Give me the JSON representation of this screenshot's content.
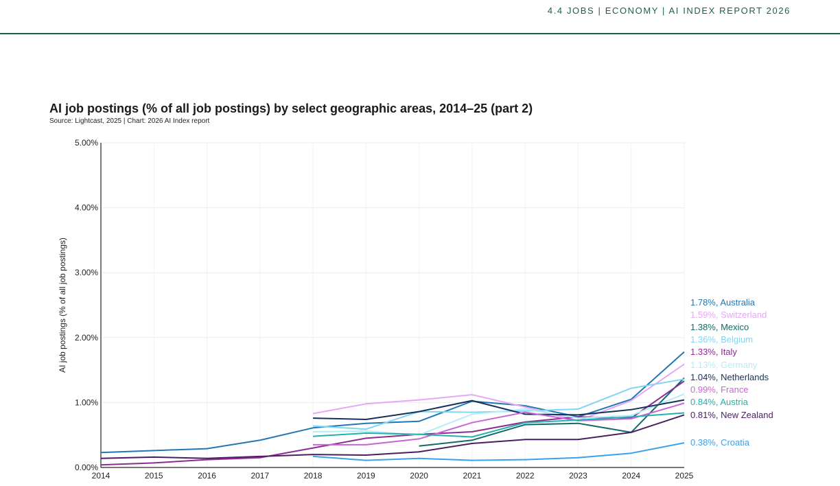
{
  "header": {
    "breadcrumb": "4.4 JOBS  |  ECONOMY  |  AI INDEX REPORT 2026"
  },
  "chart_data": {
    "type": "line",
    "title": "AI job postings (% of all job postings) by select geographic areas, 2014–25 (part 2)",
    "subtitle": "Source: Lightcast, 2025 | Chart: 2026 AI Index report",
    "xlabel": "",
    "ylabel": "AI job postings (% of all job postings)",
    "ylim": [
      0,
      5
    ],
    "yticks": [
      0,
      1,
      2,
      3,
      4,
      5
    ],
    "ytick_labels": [
      "0.00%",
      "1.00%",
      "2.00%",
      "3.00%",
      "4.00%",
      "5.00%"
    ],
    "x": [
      2014,
      2015,
      2016,
      2017,
      2018,
      2019,
      2020,
      2021,
      2022,
      2023,
      2024,
      2025
    ],
    "grid": true,
    "legend": "end-of-line labels, right",
    "series": [
      {
        "name": "Australia",
        "label": "1.78%, Australia",
        "color": "#1f77b4",
        "values": [
          0.23,
          0.26,
          0.29,
          0.42,
          0.61,
          0.68,
          0.71,
          1.02,
          0.95,
          0.78,
          1.05,
          1.78
        ]
      },
      {
        "name": "Switzerland",
        "label": "1.59%, Switzerland",
        "color": "#e5a8f5",
        "values": [
          null,
          null,
          null,
          null,
          0.83,
          0.98,
          1.04,
          1.12,
          0.93,
          0.72,
          1.03,
          1.59
        ]
      },
      {
        "name": "Mexico",
        "label": "1.38%, Mexico",
        "color": "#0f6b68",
        "values": [
          null,
          null,
          null,
          null,
          null,
          null,
          0.33,
          0.42,
          0.66,
          0.68,
          0.54,
          1.38
        ]
      },
      {
        "name": "Belgium",
        "label": "1.36%, Belgium",
        "color": "#7fd6f2",
        "values": [
          null,
          null,
          null,
          null,
          0.64,
          0.59,
          0.86,
          0.85,
          0.87,
          0.9,
          1.22,
          1.36
        ]
      },
      {
        "name": "Italy",
        "label": "1.33%, Italy",
        "color": "#8e2b93",
        "values": [
          0.04,
          0.07,
          0.12,
          0.15,
          0.3,
          0.45,
          0.51,
          0.55,
          0.7,
          0.78,
          0.76,
          1.33
        ]
      },
      {
        "name": "Germany",
        "label": "1.13%, Germany",
        "color": "#b5ecf7",
        "values": [
          null,
          null,
          null,
          null,
          0.55,
          0.56,
          0.5,
          0.82,
          0.9,
          0.76,
          0.8,
          1.13
        ]
      },
      {
        "name": "Netherlands",
        "label": "1.04%, Netherlands",
        "color": "#16305a",
        "values": [
          null,
          null,
          null,
          null,
          0.76,
          0.74,
          0.86,
          1.03,
          0.82,
          0.81,
          0.89,
          1.04
        ]
      },
      {
        "name": "France",
        "label": "0.99%, France",
        "color": "#c964d6",
        "values": [
          null,
          null,
          null,
          null,
          0.35,
          0.35,
          0.44,
          0.69,
          0.85,
          0.72,
          0.75,
          0.99
        ]
      },
      {
        "name": "Austria",
        "label": "0.84%, Austria",
        "color": "#22b2aa",
        "values": [
          null,
          null,
          null,
          null,
          0.48,
          0.53,
          0.51,
          0.47,
          0.69,
          0.73,
          0.78,
          0.84
        ]
      },
      {
        "name": "New Zealand",
        "label": "0.81%, New Zealand",
        "color": "#4a1f5f",
        "values": [
          0.14,
          0.16,
          0.14,
          0.17,
          0.2,
          0.19,
          0.24,
          0.37,
          0.43,
          0.43,
          0.54,
          0.81
        ]
      },
      {
        "name": "Croatia",
        "label": "0.38%, Croatia",
        "color": "#3aa0ea",
        "values": [
          null,
          null,
          null,
          null,
          0.17,
          0.11,
          0.14,
          0.11,
          0.12,
          0.15,
          0.22,
          0.38
        ]
      }
    ]
  }
}
